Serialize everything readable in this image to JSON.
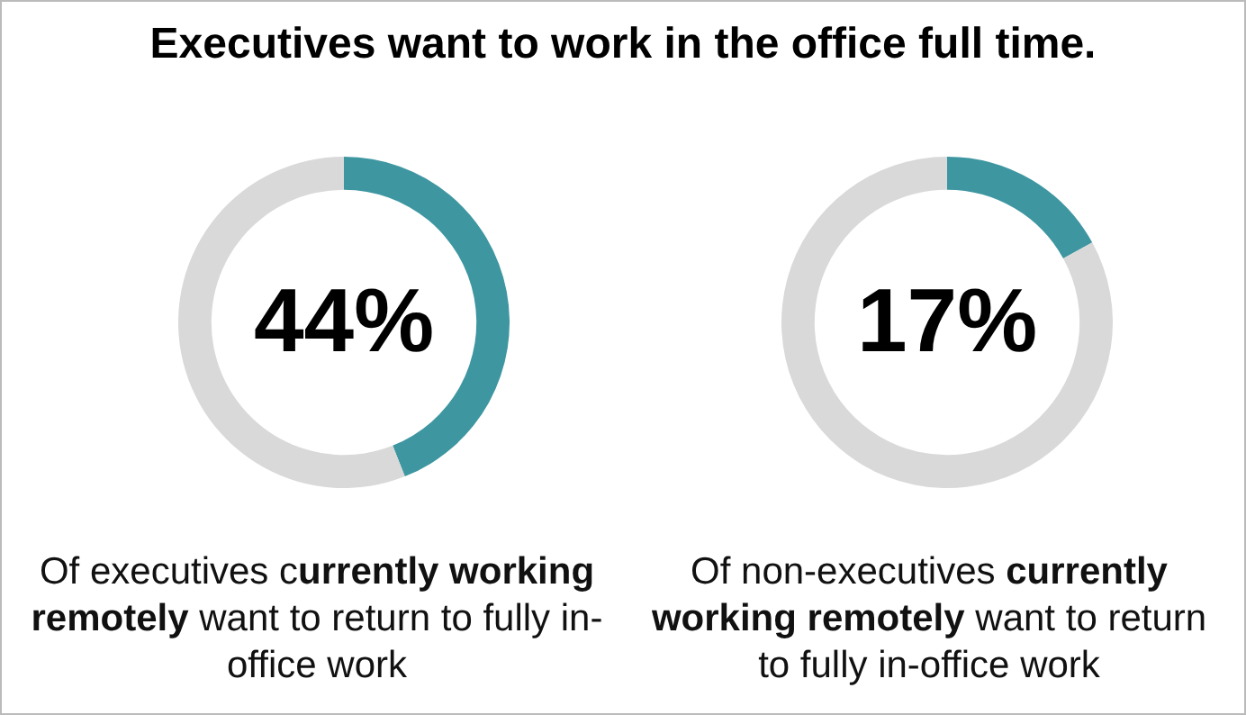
{
  "chart_data": [
    {
      "type": "donut",
      "title": "Executives want to work in the office full time.",
      "categories": [
        null,
        null
      ],
      "values": [
        44,
        56
      ],
      "colors": [
        "#3e96a1",
        "#d9d9d9"
      ],
      "value_labels": [
        "44%",
        null
      ],
      "annotations": [
        "Of executives c",
        "urrently working remotely",
        " want to return to fully in-office work"
      ]
    },
    {
      "type": "donut",
      "categories": [
        null,
        null
      ],
      "values": [
        17,
        83
      ],
      "colors": [
        "#3e96a1",
        "#d9d9d9"
      ],
      "value_labels": [
        "17%",
        null
      ],
      "annotations": [
        "Of non-executives ",
        "currently working remotely",
        " want to return to fully in-office work"
      ]
    }
  ]
}
